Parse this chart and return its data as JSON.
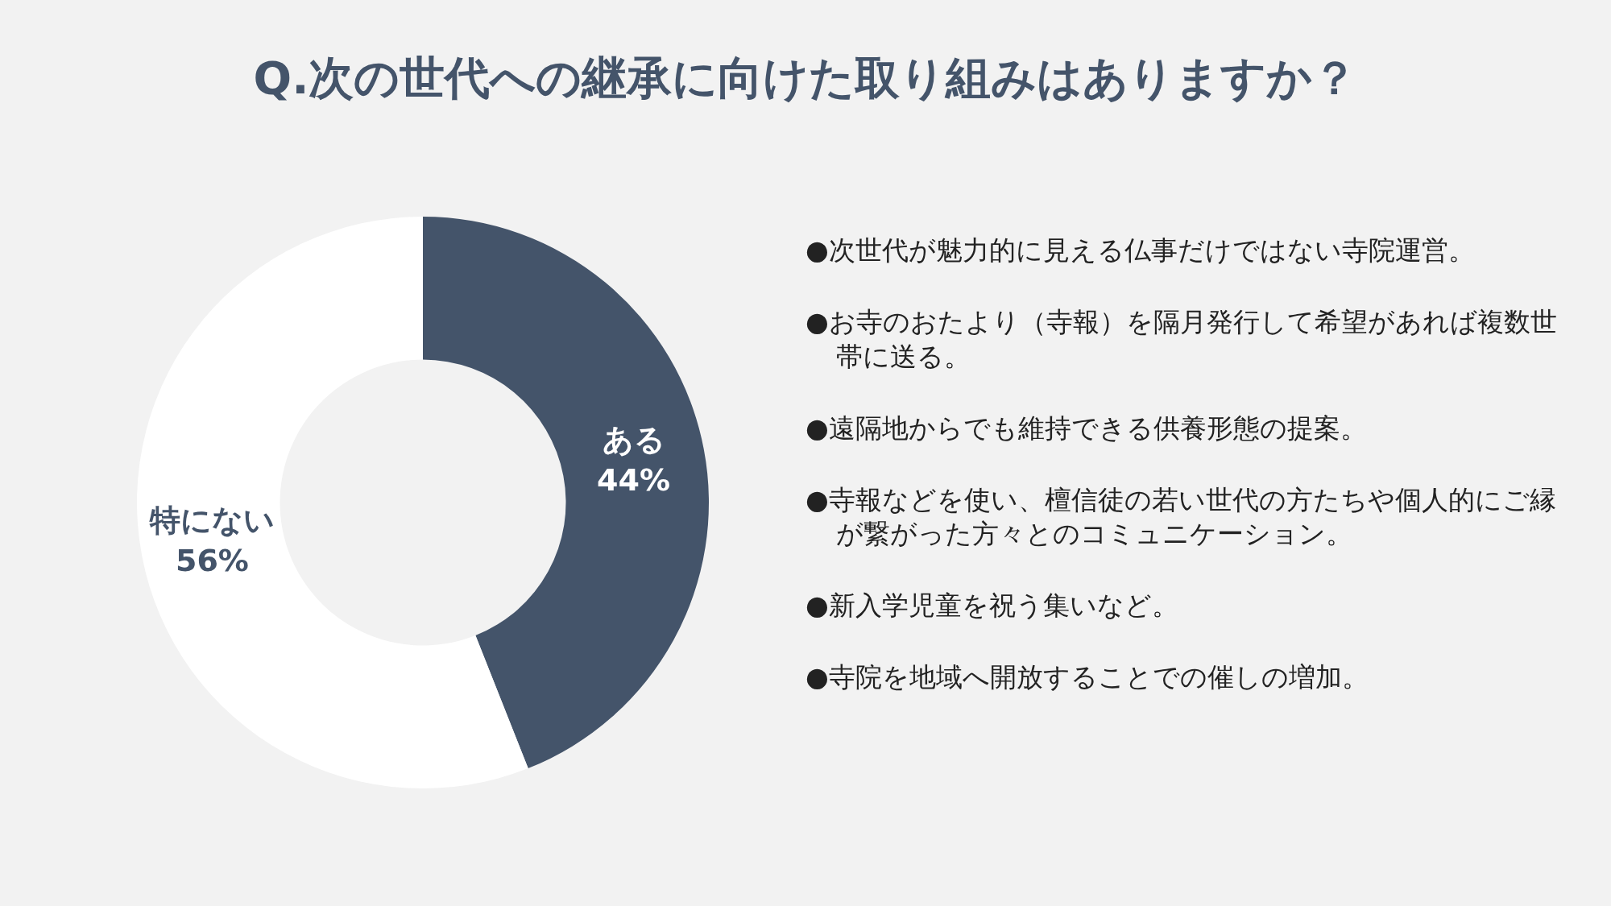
{
  "chart_data": {
    "type": "donut",
    "title": "Q.次の世代への継承に向けた取り組みはありますか？",
    "categories": [
      "ある",
      "特にない"
    ],
    "values": [
      44,
      56
    ],
    "value_labels": [
      "44%",
      "56%"
    ],
    "colors": [
      "#44546a",
      "#ffffff"
    ],
    "annotations": [
      "●次世代が魅力的に見える仏事だけではない寺院運営。",
      "●お寺のおたより（寺報）を隔月発行して希望があれば複数世帯に送る。",
      "●遠隔地からでも維持できる供養形態の提案。",
      "●寺報などを使い、檀信徒の若い世代の方たちや個人的にご縁が繋がった方々とのコミュニケーション。",
      "●新入学児童を祝う集いなど。",
      "●寺院を地域へ開放することでの催しの増加。"
    ]
  }
}
